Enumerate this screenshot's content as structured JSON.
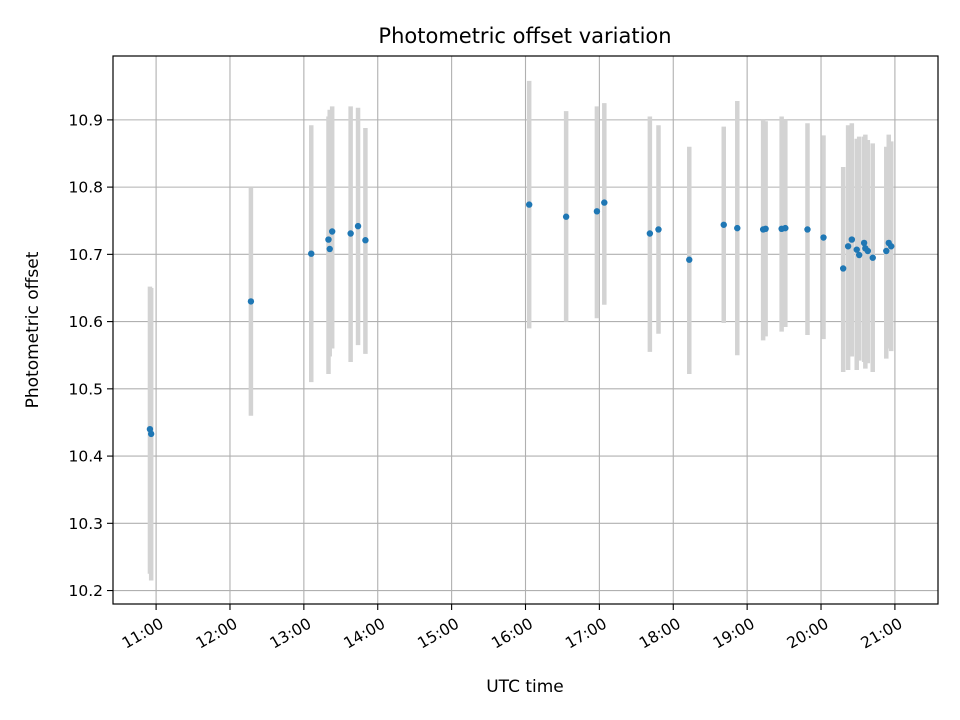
{
  "chart_data": {
    "type": "scatter",
    "title": "Photometric offset variation",
    "xlabel": "UTC time",
    "ylabel": "Photometric offset",
    "x_ticks": [
      "11:00",
      "12:00",
      "13:00",
      "14:00",
      "15:00",
      "16:00",
      "17:00",
      "18:00",
      "19:00",
      "20:00",
      "21:00"
    ],
    "y_ticks": [
      "10.2",
      "10.3",
      "10.4",
      "10.5",
      "10.6",
      "10.7",
      "10.8",
      "10.9"
    ],
    "xlim": [
      "10:25",
      "21:35"
    ],
    "ylim": [
      10.18,
      10.995
    ],
    "grid": true,
    "point_color": "#1f77b4",
    "errorbar_color": "#d3d3d3",
    "series": [
      {
        "x": [
          "10:55",
          "10:56",
          "12:17",
          "13:06",
          "13:20",
          "13:21",
          "13:23",
          "13:38",
          "13:44",
          "13:50",
          "16:03",
          "16:33",
          "16:58",
          "17:04",
          "17:41",
          "17:48",
          "18:13",
          "18:41",
          "18:52",
          "19:13",
          "19:15",
          "19:28",
          "19:31",
          "19:49",
          "20:02",
          "20:18",
          "20:22",
          "20:25",
          "20:29",
          "20:31",
          "20:35",
          "20:36",
          "20:38",
          "20:42",
          "20:53",
          "20:55",
          "20:57"
        ],
        "y": [
          10.44,
          10.433,
          10.63,
          10.701,
          10.722,
          10.708,
          10.734,
          10.731,
          10.742,
          10.721,
          10.774,
          10.756,
          10.764,
          10.777,
          10.731,
          10.737,
          10.692,
          10.744,
          10.739,
          10.737,
          10.738,
          10.738,
          10.739,
          10.737,
          10.725,
          10.679,
          10.712,
          10.722,
          10.707,
          10.699,
          10.717,
          10.709,
          10.705,
          10.695,
          10.705,
          10.717,
          10.712
        ],
        "err_low": [
          10.225,
          10.215,
          10.46,
          10.51,
          10.522,
          10.548,
          10.56,
          10.54,
          10.565,
          10.552,
          10.59,
          10.6,
          10.605,
          10.625,
          10.555,
          10.582,
          10.522,
          10.598,
          10.55,
          10.572,
          10.578,
          10.585,
          10.592,
          10.58,
          10.574,
          10.525,
          10.528,
          10.548,
          10.528,
          10.542,
          10.54,
          10.53,
          10.538,
          10.525,
          10.545,
          10.56,
          10.556
        ],
        "err_high": [
          10.652,
          10.65,
          10.8,
          10.892,
          10.905,
          10.915,
          10.92,
          10.92,
          10.918,
          10.888,
          10.958,
          10.913,
          10.92,
          10.925,
          10.905,
          10.892,
          10.86,
          10.89,
          10.928,
          10.9,
          10.898,
          10.905,
          10.9,
          10.895,
          10.877,
          10.83,
          10.892,
          10.895,
          10.872,
          10.875,
          10.875,
          10.878,
          10.87,
          10.865,
          10.86,
          10.878,
          10.868
        ]
      }
    ]
  }
}
